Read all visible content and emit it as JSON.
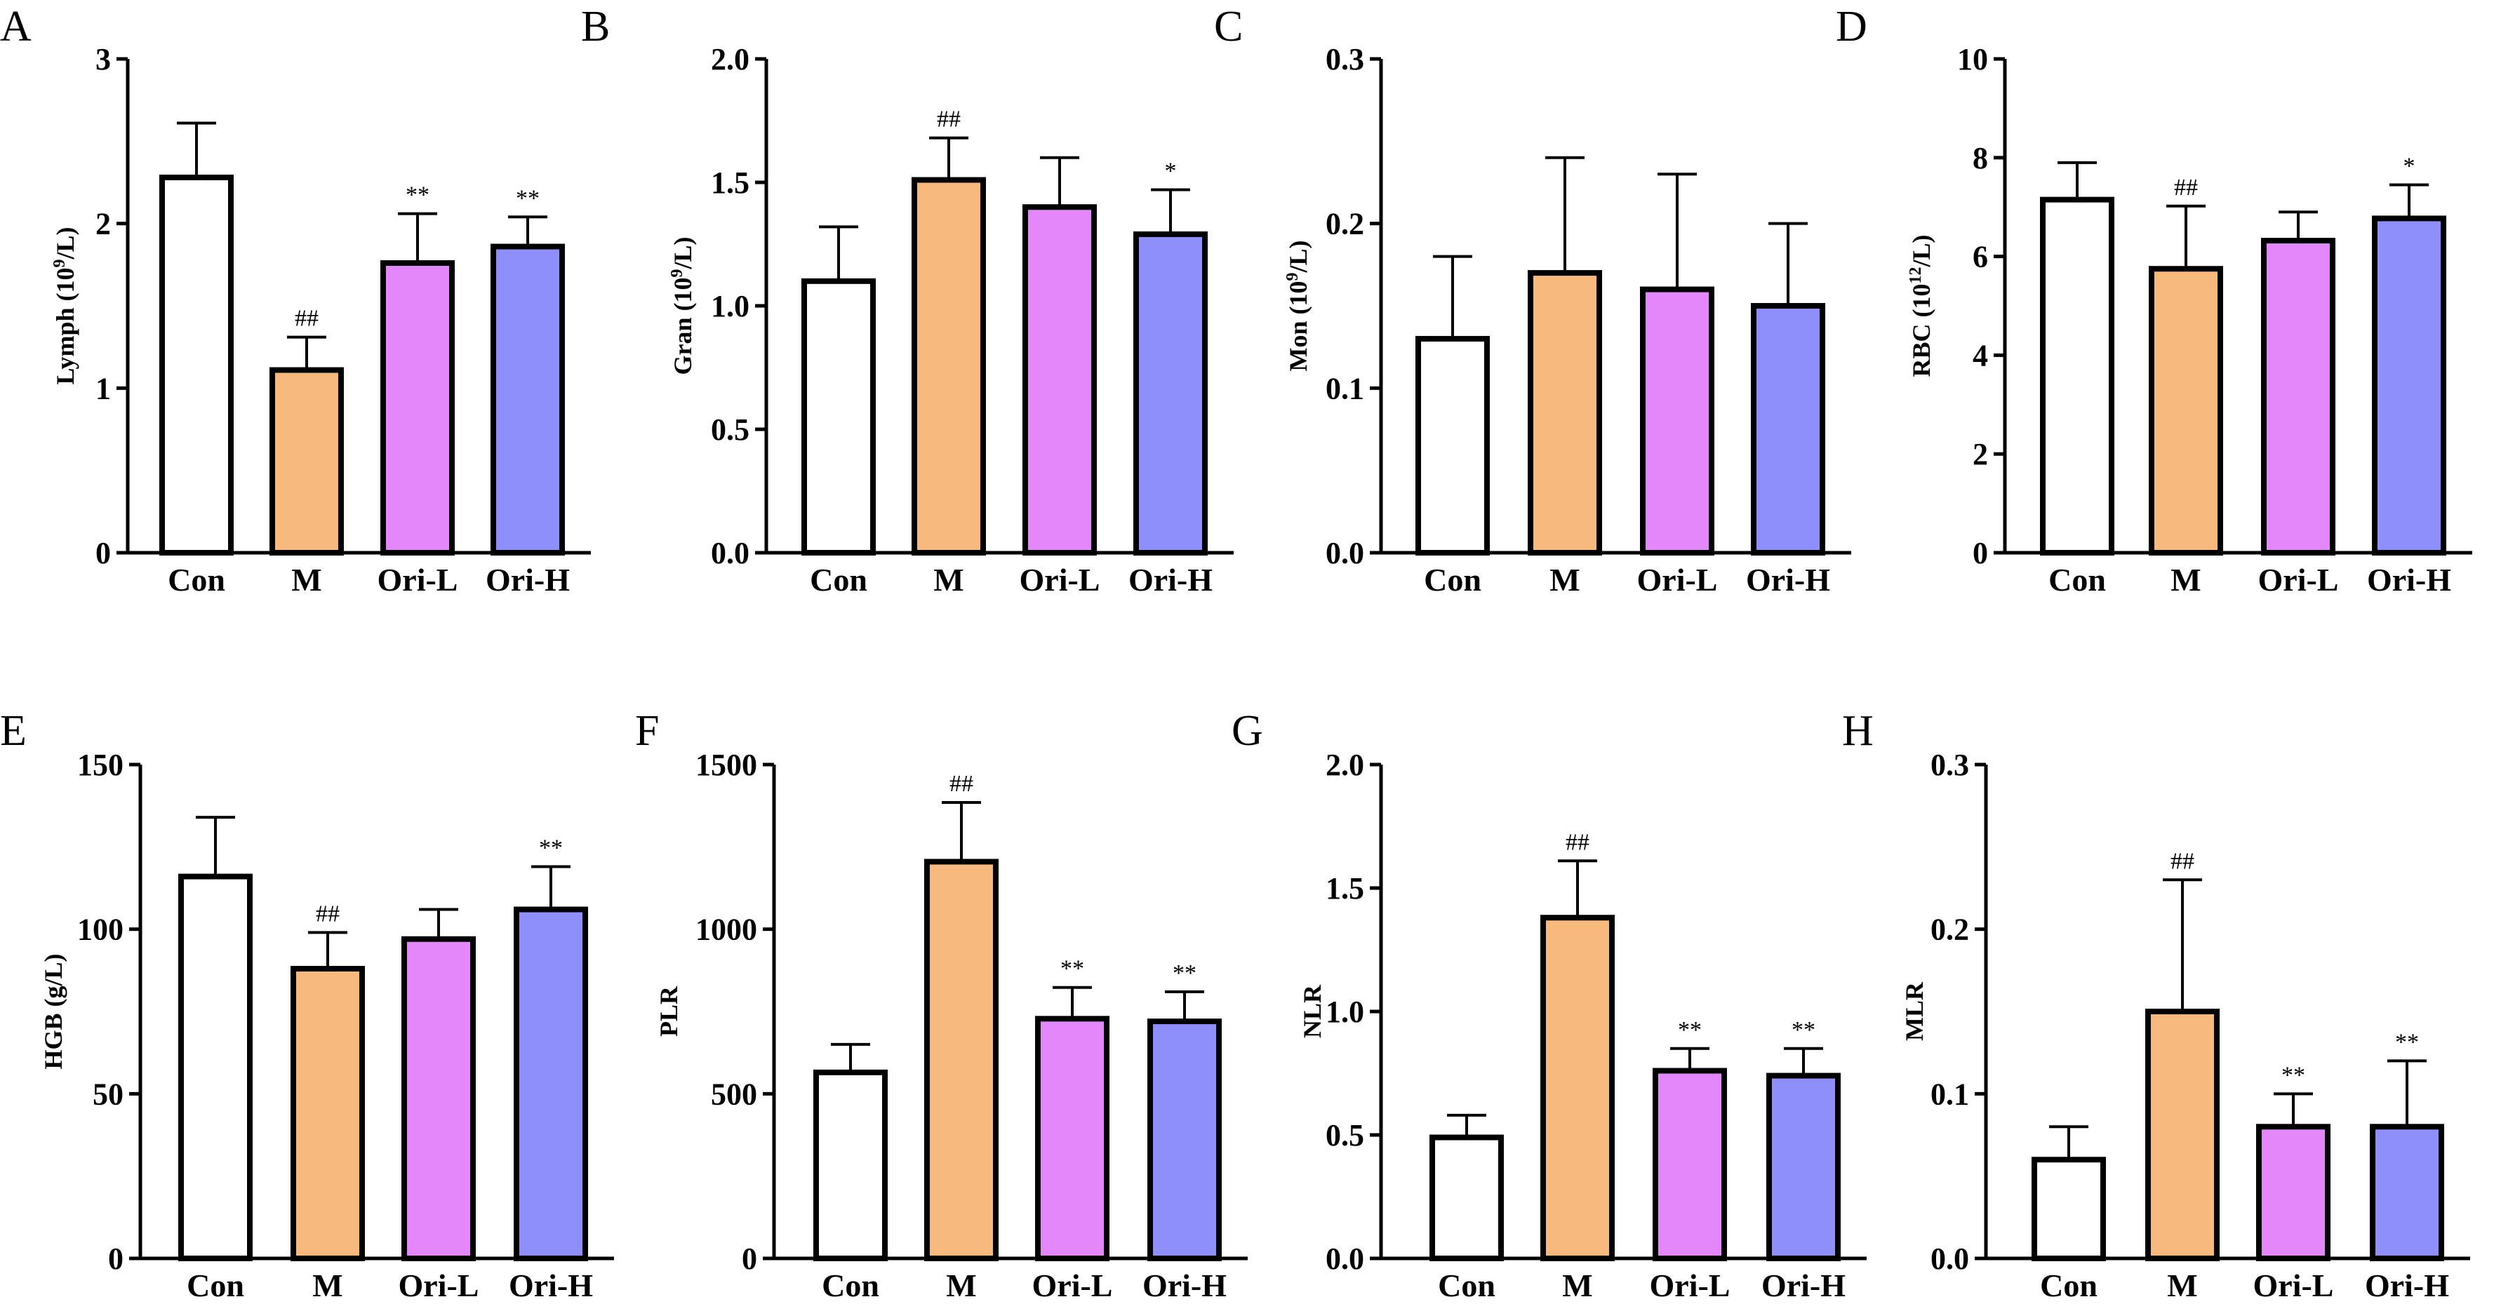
{
  "colors": {
    "Con": "#ffffff",
    "M": "#f7b97c",
    "Ori-L": "#e387fb",
    "Ori-H": "#8f8ffc",
    "axis": "#000000"
  },
  "chart_data": [
    {
      "type": "bar",
      "panel": "A",
      "ylabel": "Lymph (10",
      "ylabel_sup": "9",
      "ylabel_end": "/L)",
      "categories": [
        "Con",
        "M",
        "Ori-L",
        "Ori-H"
      ],
      "values": [
        2.28,
        1.11,
        1.76,
        1.86
      ],
      "errors": [
        0.33,
        0.2,
        0.3,
        0.18
      ],
      "significance": [
        "",
        "##",
        "**",
        "**"
      ],
      "ylim": [
        0,
        3
      ],
      "yticks": [
        0,
        1,
        2,
        3
      ],
      "ytick_labels": [
        "0",
        "1",
        "2",
        "3"
      ]
    },
    {
      "type": "bar",
      "panel": "B",
      "ylabel": "Gran (10",
      "ylabel_sup": "9",
      "ylabel_end": "/L)",
      "categories": [
        "Con",
        "M",
        "Ori-L",
        "Ori-H"
      ],
      "values": [
        1.1,
        1.51,
        1.4,
        1.29
      ],
      "errors": [
        0.22,
        0.17,
        0.2,
        0.18
      ],
      "significance": [
        "",
        "##",
        "",
        "*"
      ],
      "ylim": [
        0,
        2
      ],
      "yticks": [
        0,
        0.5,
        1,
        1.5,
        2
      ],
      "ytick_labels": [
        "0.0",
        "0.5",
        "1.0",
        "1.5",
        "2.0"
      ]
    },
    {
      "type": "bar",
      "panel": "C",
      "ylabel": "Mon (10",
      "ylabel_sup": "9",
      "ylabel_end": "/L)",
      "categories": [
        "Con",
        "M",
        "Ori-L",
        "Ori-H"
      ],
      "values": [
        0.13,
        0.17,
        0.16,
        0.15
      ],
      "errors": [
        0.05,
        0.07,
        0.07,
        0.05
      ],
      "significance": [
        "",
        "",
        "",
        ""
      ],
      "ylim": [
        0,
        0.3
      ],
      "yticks": [
        0,
        0.1,
        0.2,
        0.3
      ],
      "ytick_labels": [
        "0.0",
        "0.1",
        "0.2",
        "0.3"
      ]
    },
    {
      "type": "bar",
      "panel": "D",
      "ylabel": "RBC (10",
      "ylabel_sup": "12",
      "ylabel_end": "/L)",
      "categories": [
        "Con",
        "M",
        "Ori-L",
        "Ori-H"
      ],
      "values": [
        7.15,
        5.75,
        6.32,
        6.77
      ],
      "errors": [
        0.75,
        1.27,
        0.58,
        0.68
      ],
      "significance": [
        "",
        "##",
        "",
        "*"
      ],
      "ylim": [
        0,
        10
      ],
      "yticks": [
        0,
        2,
        4,
        6,
        8,
        10
      ],
      "ytick_labels": [
        "0",
        "2",
        "4",
        "6",
        "8",
        "10"
      ]
    },
    {
      "type": "bar",
      "panel": "E",
      "ylabel": "HGB (g/L)",
      "ylabel_sup": "",
      "ylabel_end": "",
      "categories": [
        "Con",
        "M",
        "Ori-L",
        "Ori-H"
      ],
      "values": [
        116,
        88,
        97,
        106
      ],
      "errors": [
        18,
        11,
        9,
        13
      ],
      "significance": [
        "",
        "##",
        "",
        "**"
      ],
      "ylim": [
        0,
        150
      ],
      "yticks": [
        0,
        50,
        100,
        150
      ],
      "ytick_labels": [
        "0",
        "50",
        "100",
        "150"
      ]
    },
    {
      "type": "bar",
      "panel": "F",
      "ylabel": "PLR",
      "ylabel_sup": "",
      "ylabel_end": "",
      "categories": [
        "Con",
        "M",
        "Ori-L",
        "Ori-H"
      ],
      "values": [
        565,
        1205,
        728,
        720
      ],
      "errors": [
        85,
        180,
        95,
        90
      ],
      "significance": [
        "",
        "##",
        "**",
        "**"
      ],
      "ylim": [
        0,
        1500
      ],
      "yticks": [
        0,
        500,
        1000,
        1500
      ],
      "ytick_labels": [
        "0",
        "500",
        "1000",
        "1500"
      ]
    },
    {
      "type": "bar",
      "panel": "G",
      "ylabel": "NLR",
      "ylabel_sup": "",
      "ylabel_end": "",
      "categories": [
        "Con",
        "M",
        "Ori-L",
        "Ori-H"
      ],
      "values": [
        0.49,
        1.38,
        0.76,
        0.74
      ],
      "errors": [
        0.09,
        0.23,
        0.09,
        0.11
      ],
      "significance": [
        "",
        "##",
        "**",
        "**"
      ],
      "ylim": [
        0,
        2
      ],
      "yticks": [
        0,
        0.5,
        1,
        1.5,
        2
      ],
      "ytick_labels": [
        "0.0",
        "0.5",
        "1.0",
        "1.5",
        "2.0"
      ]
    },
    {
      "type": "bar",
      "panel": "H",
      "ylabel": "MLR",
      "ylabel_sup": "",
      "ylabel_end": "",
      "categories": [
        "Con",
        "M",
        "Ori-L",
        "Ori-H"
      ],
      "values": [
        0.06,
        0.15,
        0.08,
        0.08
      ],
      "errors": [
        0.02,
        0.08,
        0.02,
        0.04
      ],
      "significance": [
        "",
        "##",
        "**",
        "**"
      ],
      "ylim": [
        0,
        0.3
      ],
      "yticks": [
        0,
        0.1,
        0.2,
        0.3
      ],
      "ytick_labels": [
        "0.0",
        "0.1",
        "0.2",
        "0.3"
      ]
    }
  ]
}
